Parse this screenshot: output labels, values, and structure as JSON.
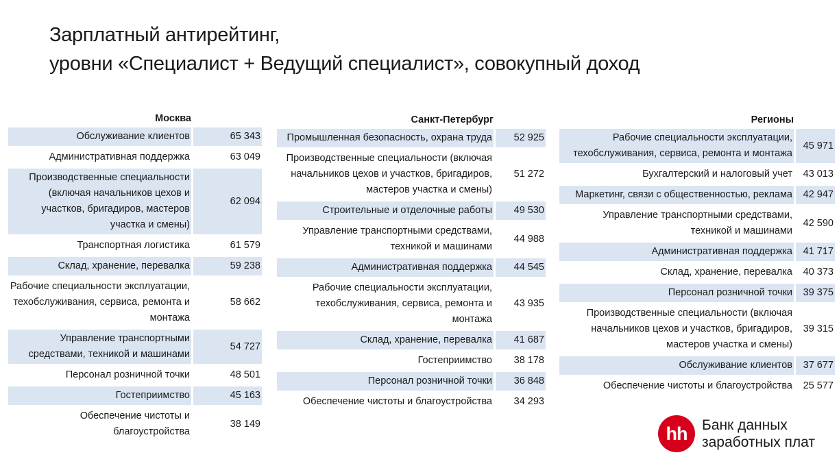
{
  "title": {
    "line1": "Зарплатный антирейтинг,",
    "line2": "уровни «Специалист + Ведущий специалист», совокупный доход"
  },
  "chart_data": [
    {
      "type": "table",
      "title": "Москва",
      "rows": [
        {
          "label": "Обслуживание клиентов",
          "value": "65 343"
        },
        {
          "label": "Административная поддержка",
          "value": "63 049"
        },
        {
          "label": "Производственные специальности (включая начальников цехов и участков, бригадиров, мастеров участка и смены)",
          "value": "62 094"
        },
        {
          "label": "Транспортная логистика",
          "value": "61 579"
        },
        {
          "label": "Склад, хранение, перевалка",
          "value": "59 238"
        },
        {
          "label": "Рабочие специальности эксплуатации, техобслуживания, сервиса, ремонта и монтажа",
          "value": "58 662"
        },
        {
          "label": "Управление транспортными средствами, техникой и машинами",
          "value": "54 727"
        },
        {
          "label": "Персонал розничной точки",
          "value": "48 501"
        },
        {
          "label": "Гостеприимство",
          "value": "45 163"
        },
        {
          "label": "Обеспечение чистоты и благоустройства",
          "value": "38 149"
        }
      ]
    },
    {
      "type": "table",
      "title": "Санкт-Петербург",
      "rows": [
        {
          "label": "Промышленная безопасность, охрана труда",
          "value": "52 925"
        },
        {
          "label": "Производственные специальности (включая начальников цехов и участков, бригадиров, мастеров участка и смены)",
          "value": "51 272"
        },
        {
          "label": "Строительные и отделочные работы",
          "value": "49 530"
        },
        {
          "label": "Управление транспортными средствами, техникой и машинами",
          "value": "44 988"
        },
        {
          "label": "Административная поддержка",
          "value": "44 545"
        },
        {
          "label": "Рабочие специальности эксплуатации, техобслуживания, сервиса, ремонта и монтажа",
          "value": "43 935"
        },
        {
          "label": "Склад, хранение, перевалка",
          "value": "41 687"
        },
        {
          "label": "Гостеприимство",
          "value": "38 178"
        },
        {
          "label": "Персонал розничной точки",
          "value": "36 848"
        },
        {
          "label": "Обеспечение чистоты и благоустройства",
          "value": "34 293"
        }
      ]
    },
    {
      "type": "table",
      "title": "Регионы",
      "rows": [
        {
          "label": "Рабочие специальности эксплуатации, техобслуживания, сервиса, ремонта и монтажа",
          "value": "45 971"
        },
        {
          "label": "Бухгалтерский и налоговый учет",
          "value": "43 013"
        },
        {
          "label": "Маркетинг, связи с общественностью, реклама",
          "value": "42 947"
        },
        {
          "label": "Управление транспортными средствами, техникой и машинами",
          "value": "42 590"
        },
        {
          "label": "Административная поддержка",
          "value": "41 717"
        },
        {
          "label": "Склад, хранение, перевалка",
          "value": "40 373"
        },
        {
          "label": "Персонал розничной точки",
          "value": "39 375"
        },
        {
          "label": "Производственные специальности (включая начальников цехов и участков, бригадиров, мастеров участка и смены)",
          "value": "39 315"
        },
        {
          "label": "Обслуживание клиентов",
          "value": "37 677"
        },
        {
          "label": "Обеспечение чистоты и благоустройства",
          "value": "25 577"
        }
      ]
    }
  ],
  "logo": {
    "mark": "hh",
    "line1": "Банк данных",
    "line2": "заработных плат",
    "color": "#d6001c"
  },
  "colors": {
    "row_shade": "#dbe5f2"
  }
}
